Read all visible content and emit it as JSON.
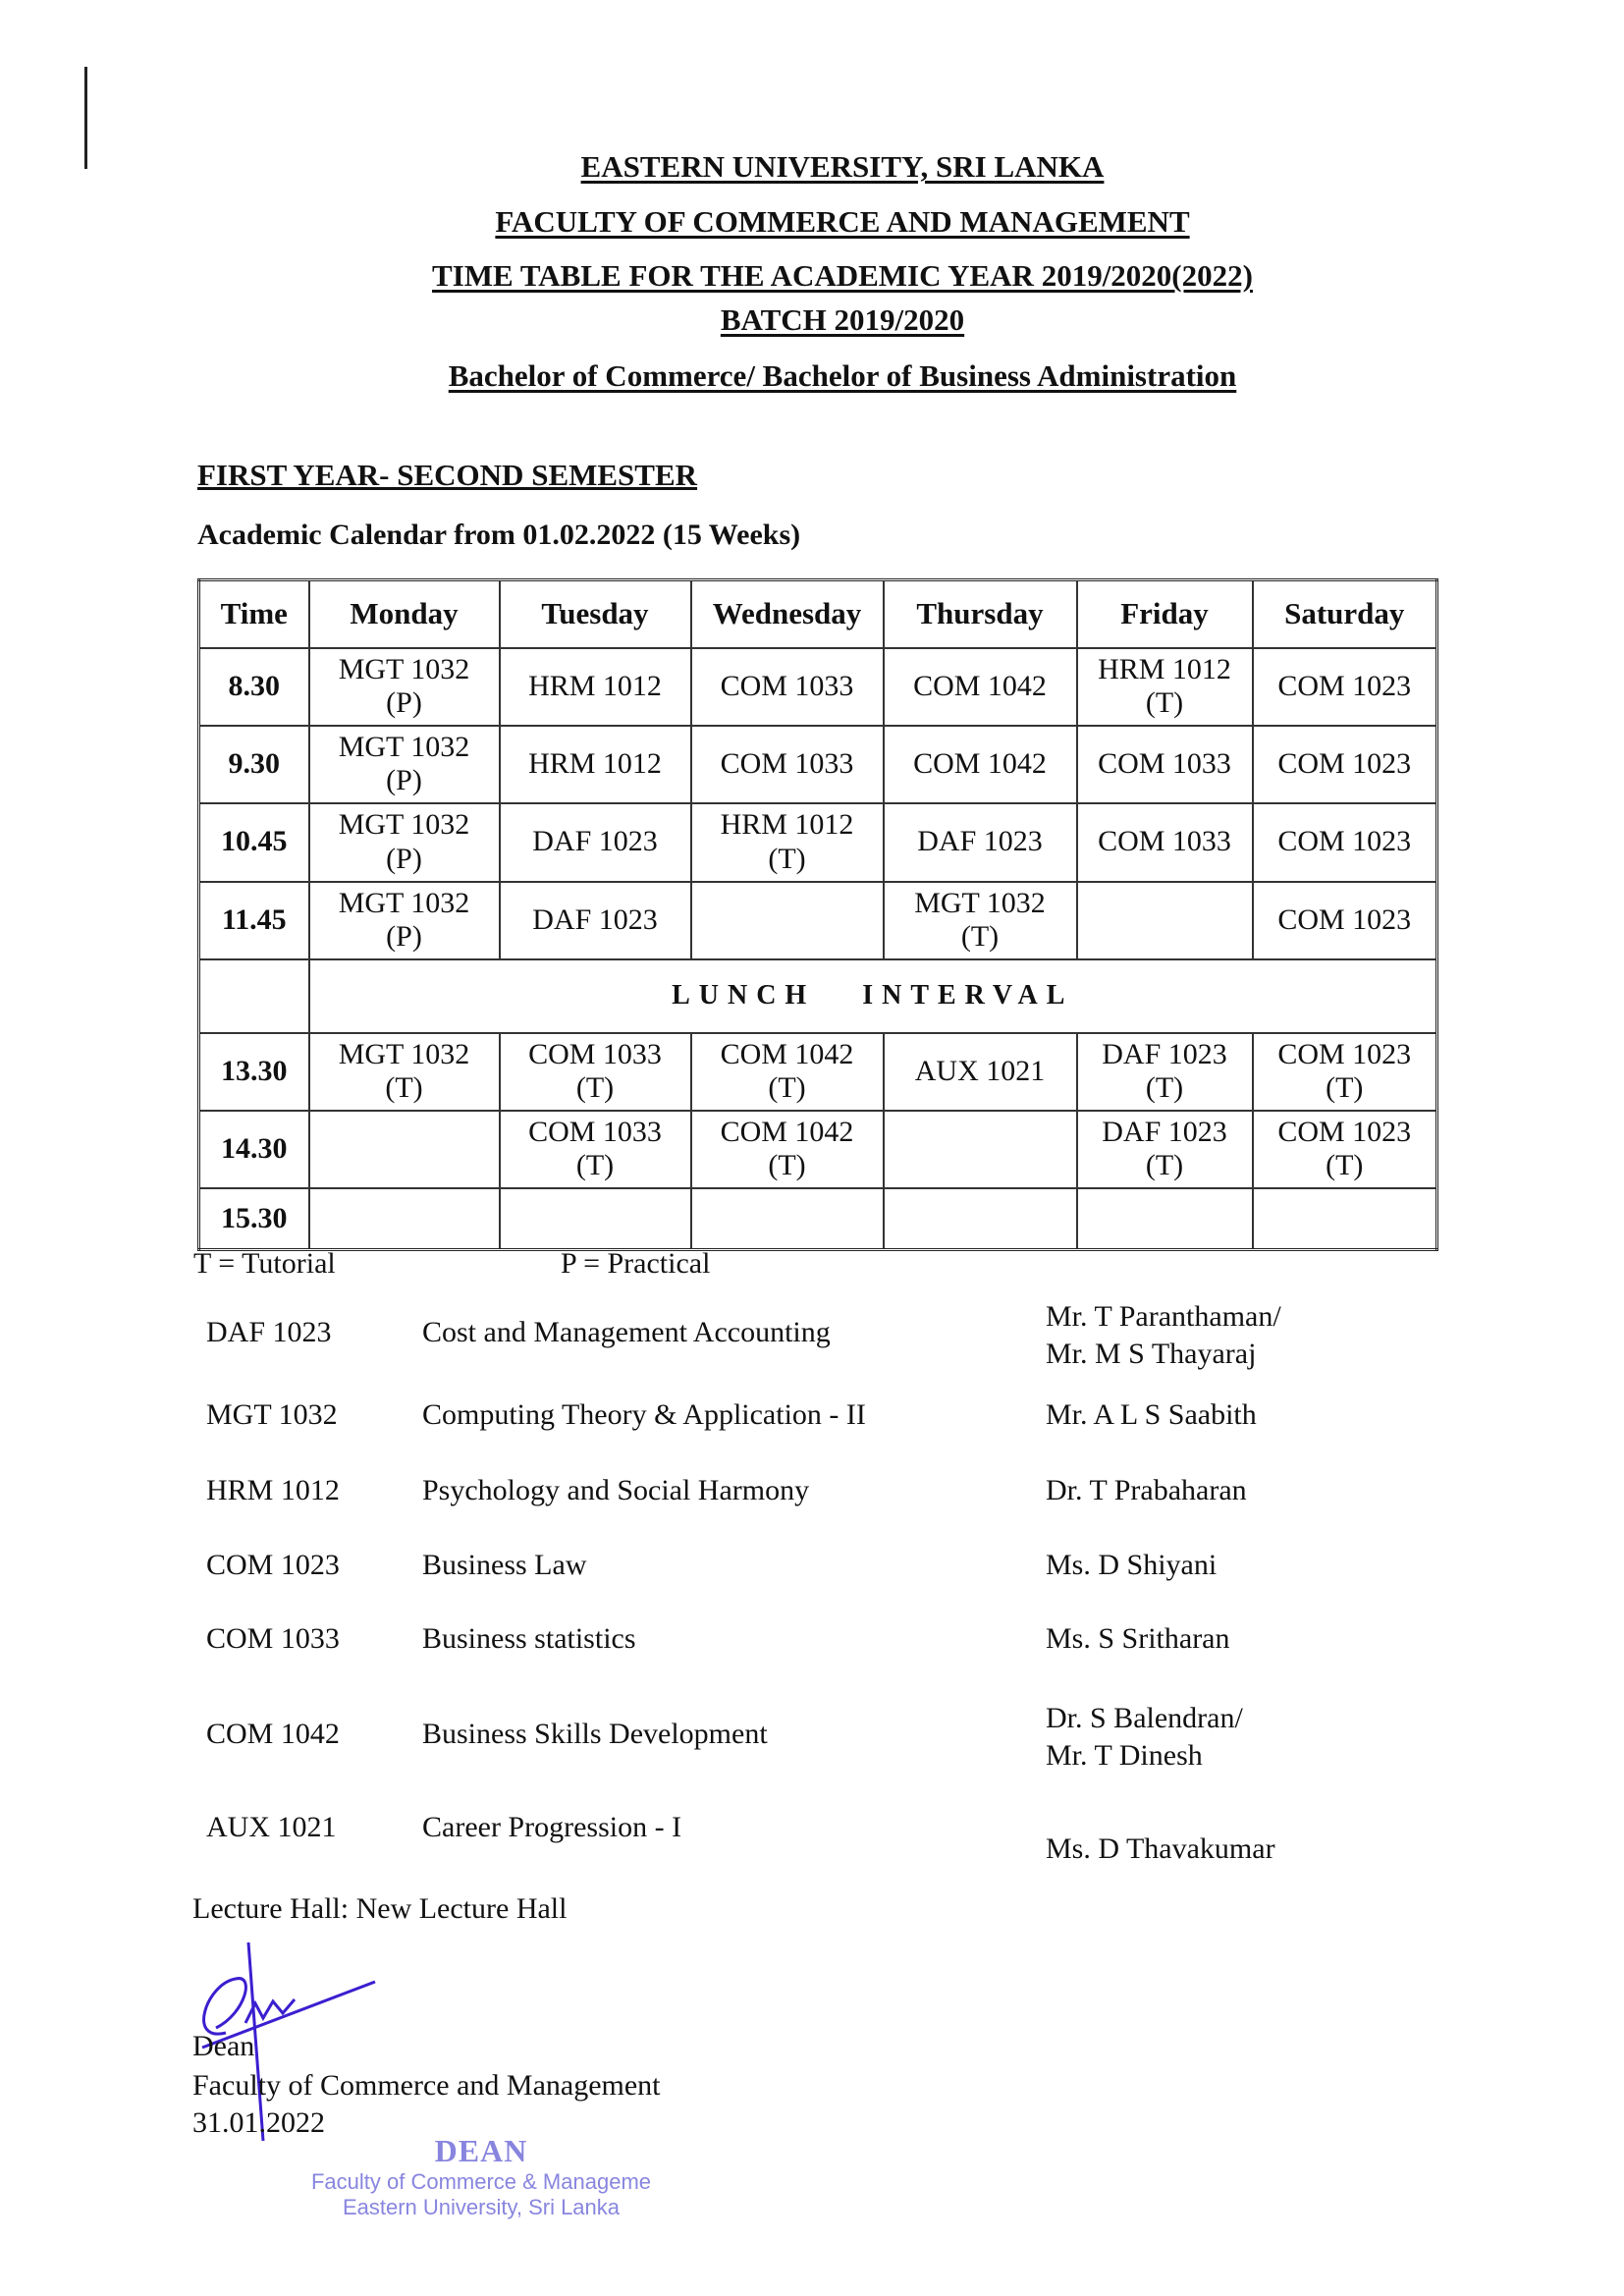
{
  "header": {
    "university": "EASTERN UNIVERSITY, SRI LANKA",
    "faculty": "FACULTY OF COMMERCE AND MANAGEMENT",
    "timetable": "TIME TABLE FOR THE ACADEMIC YEAR 2019/2020(2022)",
    "batch": "BATCH 2019/2020",
    "degree": "Bachelor of Commerce/ Bachelor of Business Administration"
  },
  "semester": "FIRST YEAR- SECOND SEMESTER",
  "calendar": "Academic Calendar from 01.02.2022 (15 Weeks)",
  "table": {
    "headers": [
      "Time",
      "Monday",
      "Tuesday",
      "Wednesday",
      "Thursday",
      "Friday",
      "Saturday"
    ],
    "rows": [
      {
        "time": "8.30",
        "cells": [
          [
            "MGT 1032",
            "(P)"
          ],
          [
            "HRM 1012",
            ""
          ],
          [
            "COM 1033",
            ""
          ],
          [
            "COM 1042",
            ""
          ],
          [
            "HRM 1012",
            "(T)"
          ],
          [
            "COM 1023",
            ""
          ]
        ]
      },
      {
        "time": "9.30",
        "cells": [
          [
            "MGT 1032",
            "(P)"
          ],
          [
            "HRM 1012",
            ""
          ],
          [
            "COM 1033",
            ""
          ],
          [
            "COM 1042",
            ""
          ],
          [
            "COM 1033",
            ""
          ],
          [
            "COM 1023",
            ""
          ]
        ]
      },
      {
        "time": "10.45",
        "cells": [
          [
            "MGT 1032",
            "(P)"
          ],
          [
            "DAF 1023",
            ""
          ],
          [
            "HRM 1012",
            "(T)"
          ],
          [
            "DAF 1023",
            ""
          ],
          [
            "COM 1033",
            ""
          ],
          [
            "COM 1023",
            ""
          ]
        ]
      },
      {
        "time": "11.45",
        "cells": [
          [
            "MGT 1032",
            "(P)"
          ],
          [
            "DAF 1023",
            ""
          ],
          [
            "",
            ""
          ],
          [
            "MGT 1032",
            "(T)"
          ],
          [
            "",
            ""
          ],
          [
            "COM 1023",
            ""
          ]
        ]
      },
      {
        "time": "13.30",
        "cells": [
          [
            "MGT 1032",
            "(T)"
          ],
          [
            "COM 1033",
            "(T)"
          ],
          [
            "COM 1042",
            "(T)"
          ],
          [
            "AUX 1021",
            ""
          ],
          [
            "DAF 1023",
            "(T)"
          ],
          [
            "COM 1023",
            "(T)"
          ]
        ]
      },
      {
        "time": "14.30",
        "cells": [
          [
            "",
            ""
          ],
          [
            "COM 1033",
            "(T)"
          ],
          [
            "COM 1042",
            "(T)"
          ],
          [
            "",
            ""
          ],
          [
            "DAF 1023",
            "(T)"
          ],
          [
            "COM 1023",
            "(T)"
          ]
        ]
      },
      {
        "time": "15.30",
        "cells": [
          [
            "",
            ""
          ],
          [
            "",
            ""
          ],
          [
            "",
            ""
          ],
          [
            "",
            ""
          ],
          [
            "",
            ""
          ],
          [
            "",
            ""
          ]
        ]
      }
    ],
    "lunch": "LUNCH   INTERVAL"
  },
  "legend": {
    "tutorial": "T = Tutorial",
    "practical": "P = Practical"
  },
  "courses": [
    {
      "code": "DAF 1023",
      "name": "Cost and Management Accounting",
      "lecturer": [
        "Mr. T Paranthaman/",
        "Mr. M S Thayaraj"
      ]
    },
    {
      "code": "MGT 1032",
      "name": "Computing Theory & Application - II",
      "lecturer": [
        "Mr. A L S Saabith"
      ]
    },
    {
      "code": "HRM 1012",
      "name": "Psychology and Social Harmony",
      "lecturer": [
        "Dr. T Prabaharan"
      ]
    },
    {
      "code": "COM 1023",
      "name": "Business Law",
      "lecturer": [
        "Ms. D Shiyani"
      ]
    },
    {
      "code": "COM 1033",
      "name": "Business statistics",
      "lecturer": [
        "Ms. S Sritharan"
      ]
    },
    {
      "code": "COM 1042",
      "name": "Business Skills Development",
      "lecturer": [
        "Dr. S Balendran/",
        "Mr. T Dinesh"
      ]
    },
    {
      "code": "AUX 1021",
      "name": "Career Progression - I",
      "lecturer": [
        "Ms. D Thavakumar"
      ]
    }
  ],
  "lecture_hall": "Lecture Hall:  New Lecture Hall",
  "signoff": {
    "title": "Dean",
    "faculty": "Faculty of Commerce and Management",
    "date": "31.01.2022"
  },
  "stamp": {
    "title": "DEAN",
    "line1": "Faculty of Commerce & Manageme",
    "line2": "Eastern University, Sri Lanka"
  },
  "colors": {
    "ink": "#111111",
    "signature": "#3a1fd0",
    "stamp": "#6b67d8"
  }
}
